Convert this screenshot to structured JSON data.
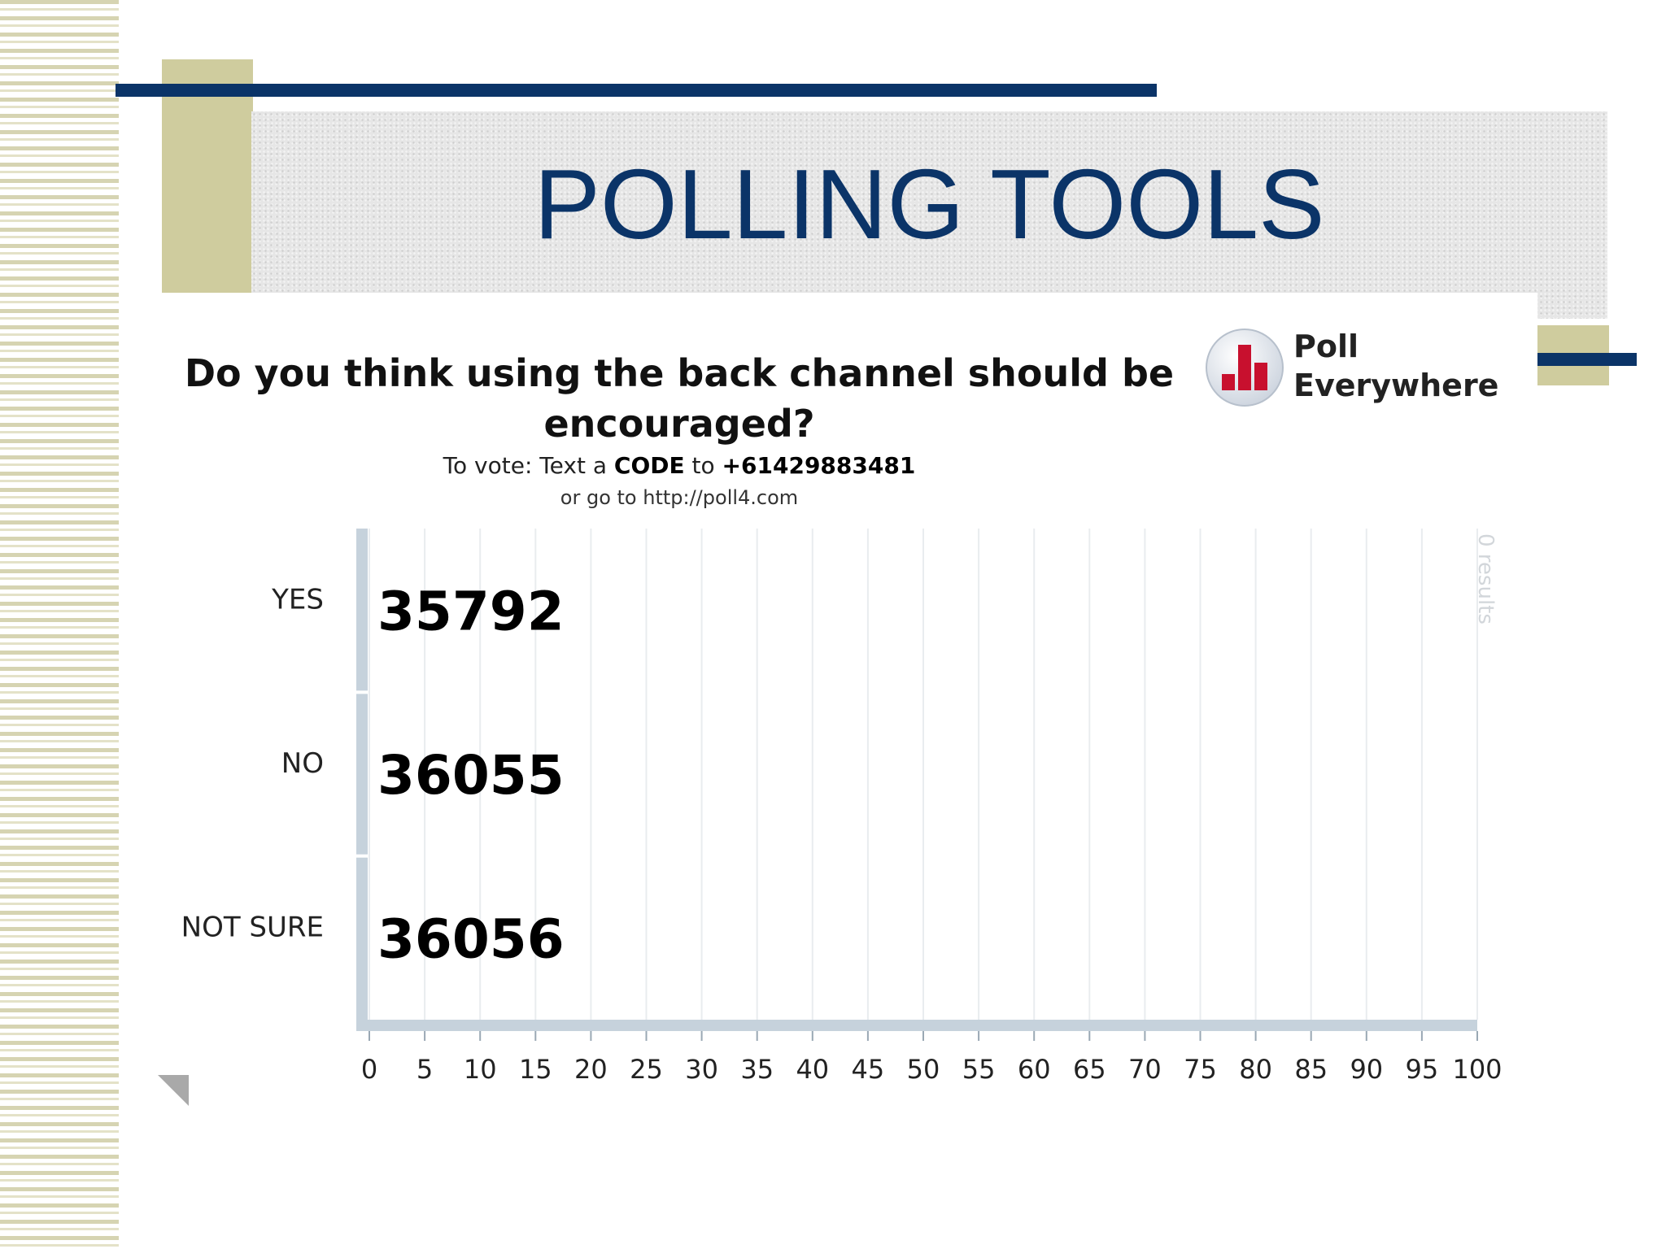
{
  "slide": {
    "title": "POLLING TOOLS"
  },
  "poll": {
    "question": "Do you think using the back channel should be encouraged?",
    "vote_prefix": "To vote: Text a",
    "vote_code": "CODE",
    "vote_to": "to",
    "vote_number": "+61429883481",
    "vote_url": "or go to http://poll4.com",
    "brand_line1": "Poll",
    "brand_line2": "Everywhere",
    "logo_icon": "bar-chart-logo-icon",
    "results_note": "0 results"
  },
  "colors": {
    "navy": "#0b3468",
    "tan": "#cfcc9e",
    "axis": "#c6d2dc",
    "logo_red": "#c8102e"
  },
  "chart_data": {
    "type": "bar",
    "orientation": "horizontal",
    "categories": [
      "YES",
      "NO",
      "NOT SURE"
    ],
    "values": [
      35792,
      36055,
      36056
    ],
    "xticks": [
      "0",
      "5",
      "10",
      "15",
      "20",
      "25",
      "30",
      "35",
      "40",
      "45",
      "50",
      "55",
      "60",
      "65",
      "70",
      "75",
      "80",
      "85",
      "90",
      "95",
      "100"
    ],
    "xlim": [
      0,
      100
    ],
    "grid": true
  }
}
